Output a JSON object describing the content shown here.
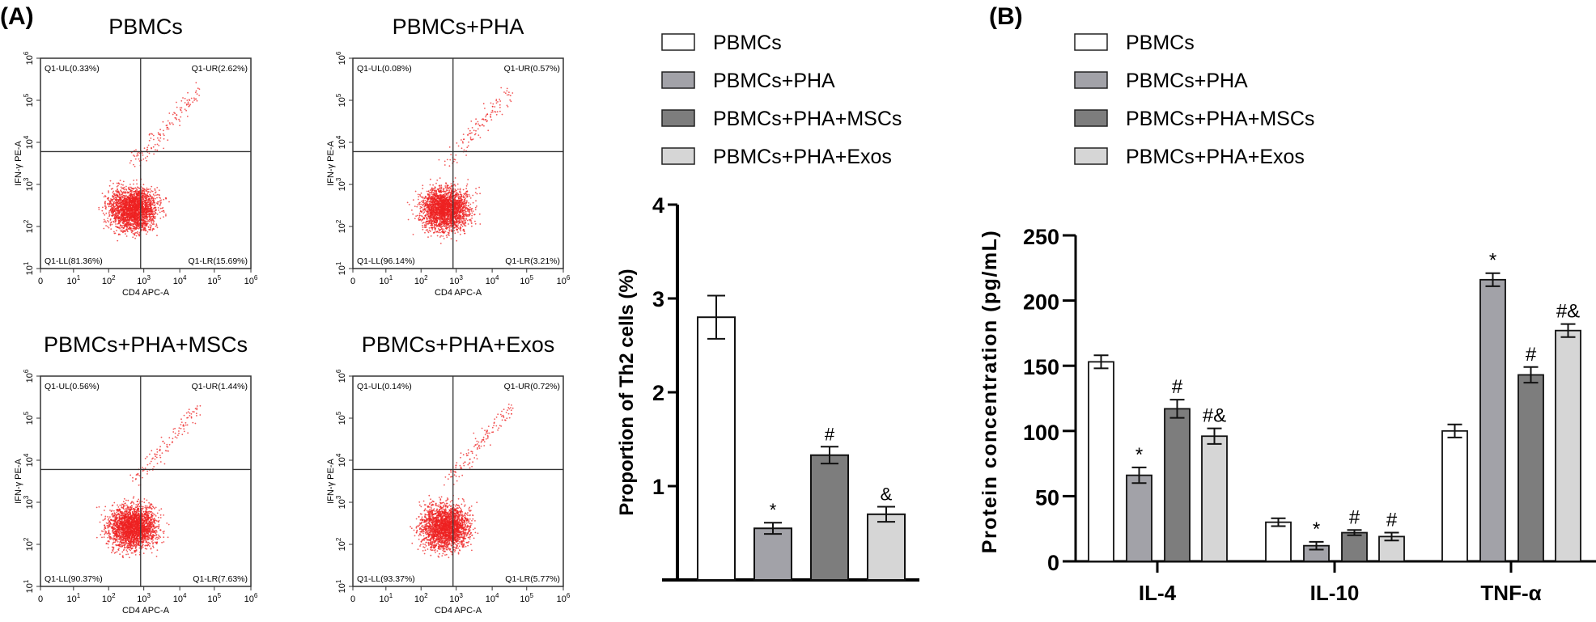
{
  "panel_labels": {
    "a": "(A)",
    "b": "(B)"
  },
  "groups": [
    {
      "label": "PBMCs",
      "color": "#ffffff"
    },
    {
      "label": "PBMCs+PHA",
      "color": "#a2a2a8"
    },
    {
      "label": "PBMCs+PHA+MSCs",
      "color": "#7d7d7d"
    },
    {
      "label": "PBMCs+PHA+Exos",
      "color": "#d6d6d6"
    }
  ],
  "chart_data": [
    {
      "type": "scatter",
      "kind": "flow-cytometry quadrant plots",
      "xlabel": "CD4 APC-A",
      "ylabel": "IFN-γ PE-A",
      "xscale": "log",
      "yscale": "log",
      "xticks": [
        {
          "base": "0",
          "exp": ""
        },
        {
          "base": "10",
          "exp": "1"
        },
        {
          "base": "10",
          "exp": "2"
        },
        {
          "base": "10",
          "exp": "3"
        },
        {
          "base": "10",
          "exp": "4"
        },
        {
          "base": "10",
          "exp": "5"
        },
        {
          "base": "10",
          "exp": "6"
        }
      ],
      "yticks": [
        {
          "base": "10",
          "exp": "1"
        },
        {
          "base": "10",
          "exp": "2"
        },
        {
          "base": "10",
          "exp": "3"
        },
        {
          "base": "10",
          "exp": "4"
        },
        {
          "base": "10",
          "exp": "5"
        },
        {
          "base": "10",
          "exp": "6"
        }
      ],
      "dot_color": "#ee2222",
      "plots": [
        {
          "title": "PBMCs",
          "ul": "Q1-UL(0.33%)",
          "ur": "Q1-UR(2.62%)",
          "ll": "Q1-LL(81.36%)",
          "lr": "Q1-LR(15.69%)"
        },
        {
          "title": "PBMCs+PHA",
          "ul": "Q1-UL(0.08%)",
          "ur": "Q1-UR(0.57%)",
          "ll": "Q1-LL(96.14%)",
          "lr": "Q1-LR(3.21%)"
        },
        {
          "title": "PBMCs+PHA+MSCs",
          "ul": "Q1-UL(0.56%)",
          "ur": "Q1-UR(1.44%)",
          "ll": "Q1-LL(90.37%)",
          "lr": "Q1-LR(7.63%)"
        },
        {
          "title": "PBMCs+PHA+Exos",
          "ul": "Q1-UL(0.14%)",
          "ur": "Q1-UR(0.72%)",
          "ll": "Q1-LL(93.37%)",
          "lr": "Q1-LR(5.77%)"
        }
      ]
    },
    {
      "type": "bar",
      "ylabel": "Proportion of Th2 cells (%)",
      "ylim": [
        0,
        4
      ],
      "yticks": [
        "1",
        "2",
        "3",
        "4"
      ],
      "categories": [
        "PBMCs",
        "PBMCs+PHA",
        "PBMCs+PHA+MSCs",
        "PBMCs+PHA+Exos"
      ],
      "values": [
        2.8,
        0.55,
        1.33,
        0.7
      ],
      "errors": [
        0.23,
        0.06,
        0.09,
        0.08
      ],
      "annotations": [
        "",
        "*",
        "#",
        "&"
      ]
    },
    {
      "type": "bar",
      "ylabel": "Protein  concentration (pg/mL)",
      "ylim": [
        0,
        250
      ],
      "yticks": [
        "0",
        "50",
        "100",
        "150",
        "200",
        "250"
      ],
      "categories": [
        "IL-4",
        "IL-10",
        "TNF-α"
      ],
      "series": [
        {
          "name": "PBMCs",
          "values": [
            153,
            30,
            100
          ],
          "errors": [
            5,
            3,
            5
          ],
          "annotations": [
            "",
            "",
            ""
          ]
        },
        {
          "name": "PBMCs+PHA",
          "values": [
            66,
            12,
            216
          ],
          "errors": [
            6,
            3,
            5
          ],
          "annotations": [
            "*",
            "*",
            "*"
          ]
        },
        {
          "name": "PBMCs+PHA+MSCs",
          "values": [
            117,
            22,
            143
          ],
          "errors": [
            7,
            2,
            6
          ],
          "annotations": [
            "#",
            "#",
            "#"
          ]
        },
        {
          "name": "PBMCs+PHA+Exos",
          "values": [
            96,
            19,
            177
          ],
          "errors": [
            6,
            3,
            5
          ],
          "annotations": [
            "#&",
            "#",
            "#&"
          ]
        }
      ]
    }
  ]
}
